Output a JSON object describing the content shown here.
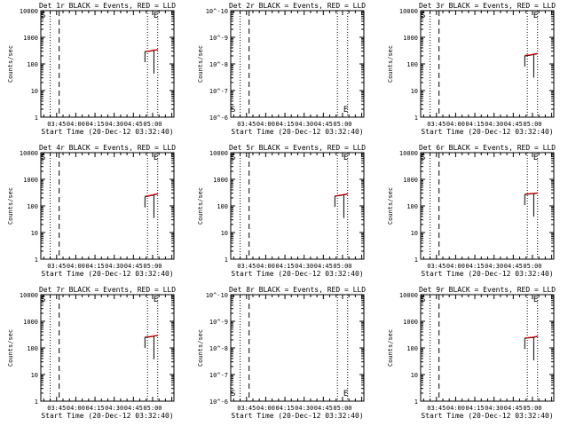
{
  "figure": {
    "xlabel": "Start Time (20-Dec-12 03:32:40)",
    "ylabel": "Counts/sec",
    "x_ticks": [
      "03:45",
      "04:00",
      "04:15",
      "04:30",
      "04:45",
      "05:00"
    ],
    "colors": {
      "events": "#000000",
      "lld": "#ff0000",
      "axes": "#000000"
    }
  },
  "chart_data": [
    {
      "type": "line",
      "title": "Det 1r BLACK = Events, RED = LLD",
      "ylabel": "Counts/sec",
      "xlabel": "Start Time (20-Dec-12 03:32:40)",
      "x_unit": "time",
      "y_scale": "log",
      "ylim": [
        1,
        10000
      ],
      "y_ticks": [
        "1",
        "10",
        "100",
        "1000",
        "10000"
      ],
      "markers": {
        "S": "03:32",
        "E": "05:02"
      },
      "series": [
        {
          "name": "BLACK = Events",
          "color": "#000000",
          "points": [
            [
              "04:54",
              290
            ],
            [
              "04:58",
              300
            ],
            [
              "05:01",
              320
            ],
            [
              "05:04",
              340
            ]
          ]
        },
        {
          "name": "RED = LLD",
          "color": "#ff0000",
          "points": [
            [
              "04:54",
              300
            ],
            [
              "04:58",
              310
            ],
            [
              "05:01",
              330
            ],
            [
              "05:04",
              350
            ]
          ]
        }
      ]
    },
    {
      "type": "line",
      "title": "Det 2r BLACK = Events, RED = LLD",
      "ylabel": "Counts/sec",
      "xlabel": "Start Time (20-Dec-12 03:32:40)",
      "x_unit": "time",
      "y_scale": "log",
      "ylim": [
        1e-06,
        1e-10
      ],
      "y_ticks": [
        "10^-6",
        "10^-7",
        "10^-8",
        "10^-9",
        "10^-10"
      ],
      "markers": {
        "S": "03:32",
        "E": "05:02"
      },
      "series": [
        {
          "name": "BLACK = Events",
          "color": "#000000",
          "points": []
        },
        {
          "name": "RED = LLD",
          "color": "#ff0000",
          "points": []
        }
      ]
    },
    {
      "type": "line",
      "title": "Det 3r BLACK = Events, RED = LLD",
      "ylabel": "Counts/sec",
      "xlabel": "Start Time (20-Dec-12 03:32:40)",
      "x_unit": "time",
      "y_scale": "log",
      "ylim": [
        1,
        10000
      ],
      "y_ticks": [
        "1",
        "10",
        "100",
        "1000",
        "10000"
      ],
      "markers": {
        "S": "03:32",
        "E": "05:02"
      },
      "series": [
        {
          "name": "BLACK = Events",
          "color": "#000000",
          "points": [
            [
              "04:54",
              200
            ],
            [
              "04:58",
              210
            ],
            [
              "05:01",
              225
            ],
            [
              "05:04",
              240
            ]
          ]
        },
        {
          "name": "RED = LLD",
          "color": "#ff0000",
          "points": [
            [
              "04:54",
              210
            ],
            [
              "04:58",
              220
            ],
            [
              "05:01",
              235
            ],
            [
              "05:04",
              250
            ]
          ]
        }
      ]
    },
    {
      "type": "line",
      "title": "Det 4r BLACK = Events, RED = LLD",
      "ylabel": "Counts/sec",
      "xlabel": "Start Time (20-Dec-12 03:32:40)",
      "x_unit": "time",
      "y_scale": "log",
      "ylim": [
        1,
        10000
      ],
      "y_ticks": [
        "1",
        "10",
        "100",
        "1000",
        "10000"
      ],
      "markers": {
        "S": "03:32",
        "E": "05:02"
      },
      "series": [
        {
          "name": "BLACK = Events",
          "color": "#000000",
          "points": [
            [
              "04:54",
              220
            ],
            [
              "04:58",
              240
            ],
            [
              "05:01",
              260
            ],
            [
              "05:04",
              280
            ]
          ]
        },
        {
          "name": "RED = LLD",
          "color": "#ff0000",
          "points": [
            [
              "04:54",
              230
            ],
            [
              "04:58",
              250
            ],
            [
              "05:01",
              270
            ],
            [
              "05:04",
              290
            ]
          ]
        }
      ]
    },
    {
      "type": "line",
      "title": "Det 5r BLACK = Events, RED = LLD",
      "ylabel": "Counts/sec",
      "xlabel": "Start Time (20-Dec-12 03:32:40)",
      "x_unit": "time",
      "y_scale": "log",
      "ylim": [
        1,
        10000
      ],
      "y_ticks": [
        "1",
        "10",
        "100",
        "1000",
        "10000"
      ],
      "markers": {
        "S": "03:32",
        "E": "05:02"
      },
      "series": [
        {
          "name": "BLACK = Events",
          "color": "#000000",
          "points": [
            [
              "04:54",
              230
            ],
            [
              "04:58",
              245
            ],
            [
              "05:01",
              260
            ],
            [
              "05:04",
              280
            ]
          ]
        },
        {
          "name": "RED = LLD",
          "color": "#ff0000",
          "points": [
            [
              "04:54",
              240
            ],
            [
              "04:58",
              255
            ],
            [
              "05:01",
              270
            ],
            [
              "05:04",
              290
            ]
          ]
        }
      ]
    },
    {
      "type": "line",
      "title": "Det 6r BLACK = Events, RED = LLD",
      "ylabel": "Counts/sec",
      "xlabel": "Start Time (20-Dec-12 03:32:40)",
      "x_unit": "time",
      "y_scale": "log",
      "ylim": [
        1,
        10000
      ],
      "y_ticks": [
        "1",
        "10",
        "100",
        "1000",
        "10000"
      ],
      "markers": {
        "S": "03:32",
        "E": "05:02"
      },
      "series": [
        {
          "name": "BLACK = Events",
          "color": "#000000",
          "points": [
            [
              "04:54",
              270
            ],
            [
              "04:58",
              280
            ],
            [
              "05:01",
              290
            ],
            [
              "05:04",
              300
            ]
          ]
        },
        {
          "name": "RED = LLD",
          "color": "#ff0000",
          "points": [
            [
              "04:54",
              280
            ],
            [
              "04:58",
              290
            ],
            [
              "05:01",
              300
            ],
            [
              "05:04",
              310
            ]
          ]
        }
      ]
    },
    {
      "type": "line",
      "title": "Det 7r BLACK = Events, RED = LLD",
      "ylabel": "Counts/sec",
      "xlabel": "Start Time (20-Dec-12 03:32:40)",
      "x_unit": "time",
      "y_scale": "log",
      "ylim": [
        1,
        10000
      ],
      "y_ticks": [
        "1",
        "10",
        "100",
        "1000",
        "10000"
      ],
      "markers": {
        "S": "03:32",
        "E": "05:02"
      },
      "series": [
        {
          "name": "BLACK = Events",
          "color": "#000000",
          "points": [
            [
              "04:54",
              250
            ],
            [
              "04:58",
              260
            ],
            [
              "05:01",
              275
            ],
            [
              "05:04",
              290
            ]
          ]
        },
        {
          "name": "RED = LLD",
          "color": "#ff0000",
          "points": [
            [
              "04:54",
              260
            ],
            [
              "04:58",
              270
            ],
            [
              "05:01",
              285
            ],
            [
              "05:04",
              300
            ]
          ]
        }
      ]
    },
    {
      "type": "line",
      "title": "Det 8r BLACK = Events, RED = LLD",
      "ylabel": "Counts/sec",
      "xlabel": "Start Time (20-Dec-12 03:32:40)",
      "x_unit": "time",
      "y_scale": "log",
      "ylim": [
        1e-06,
        1e-10
      ],
      "y_ticks": [
        "10^-6",
        "10^-7",
        "10^-8",
        "10^-9",
        "10^-10"
      ],
      "markers": {
        "S": "03:32",
        "E": "05:02"
      },
      "series": [
        {
          "name": "BLACK = Events",
          "color": "#000000",
          "points": []
        },
        {
          "name": "RED = LLD",
          "color": "#ff0000",
          "points": []
        }
      ]
    },
    {
      "type": "line",
      "title": "Det 9r BLACK = Events, RED = LLD",
      "ylabel": "Counts/sec",
      "xlabel": "Start Time (20-Dec-12 03:32:40)",
      "x_unit": "time",
      "y_scale": "log",
      "ylim": [
        1,
        10000
      ],
      "y_ticks": [
        "1",
        "10",
        "100",
        "1000",
        "10000"
      ],
      "markers": {
        "S": "03:32",
        "E": "05:02"
      },
      "series": [
        {
          "name": "BLACK = Events",
          "color": "#000000",
          "points": [
            [
              "04:54",
              230
            ],
            [
              "04:58",
              240
            ],
            [
              "05:01",
              250
            ],
            [
              "05:04",
              265
            ]
          ]
        },
        {
          "name": "RED = LLD",
          "color": "#ff0000",
          "points": [
            [
              "04:54",
              240
            ],
            [
              "04:58",
              250
            ],
            [
              "05:01",
              260
            ],
            [
              "05:04",
              275
            ]
          ]
        }
      ]
    }
  ]
}
